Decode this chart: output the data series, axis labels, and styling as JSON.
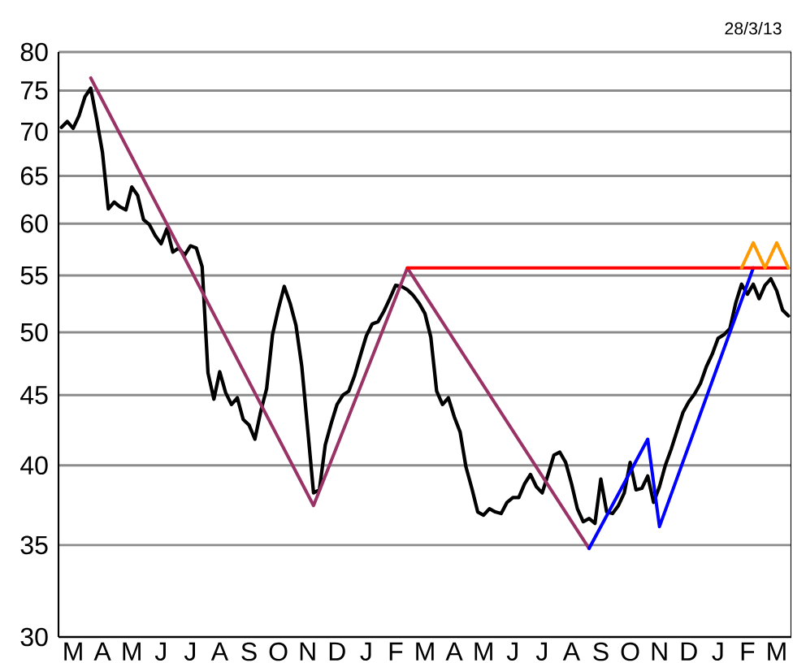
{
  "chart_data": {
    "type": "line",
    "log": "y",
    "grid": "y",
    "annotations": [
      "28/3/13"
    ],
    "ylim": [
      30,
      80
    ],
    "yticks": [
      30,
      35,
      40,
      45,
      50,
      55,
      60,
      65,
      70,
      75,
      80
    ],
    "categories": [
      null,
      null,
      "M",
      null,
      null,
      null,
      null,
      "A",
      null,
      null,
      null,
      null,
      "M",
      null,
      null,
      null,
      null,
      "J",
      null,
      null,
      null,
      null,
      "J",
      null,
      null,
      null,
      null,
      "A",
      null,
      null,
      null,
      null,
      "S",
      null,
      null,
      null,
      null,
      "O",
      null,
      null,
      null,
      null,
      "N",
      null,
      null,
      null,
      null,
      "D",
      null,
      null,
      null,
      null,
      "J",
      null,
      null,
      null,
      null,
      "F",
      null,
      null,
      null,
      null,
      "M",
      null,
      null,
      null,
      null,
      "A",
      null,
      null,
      null,
      null,
      "M",
      null,
      null,
      null,
      null,
      "J",
      null,
      null,
      null,
      null,
      "J",
      null,
      null,
      null,
      null,
      "A",
      null,
      null,
      null,
      null,
      "S",
      null,
      null,
      null,
      null,
      "O",
      null,
      null,
      null,
      null,
      "N",
      null,
      null,
      null,
      null,
      "D",
      null,
      null,
      null,
      null,
      "J",
      null,
      null,
      null,
      null,
      "F",
      null,
      null,
      null,
      null,
      "M",
      null,
      null
    ],
    "series": [
      {
        "color": "#000000",
        "values": [
          70.5,
          71.2,
          70.4,
          71.9,
          74.2,
          75.3,
          71.5,
          67.6,
          61.5,
          62.2,
          61.7,
          61.4,
          63.8,
          62.9,
          60.4,
          59.9,
          58.8,
          58.0,
          59.5,
          57.2,
          57.6,
          56.9,
          57.8,
          57.6,
          55.8,
          46.7,
          44.7,
          46.8,
          45.2,
          44.3,
          44.8,
          43.2,
          42.8,
          41.8,
          43.8,
          45.5,
          49.8,
          52.0,
          54.0,
          52.5,
          50.6,
          47.2,
          42.5,
          38.2,
          38.4,
          41.4,
          42.9,
          44.3,
          45.0,
          45.3,
          46.5,
          48.1,
          49.7,
          50.7,
          50.9,
          51.8,
          52.9,
          54.1,
          54.0,
          53.7,
          53.2,
          52.5,
          51.6,
          49.6,
          45.3,
          44.3,
          44.8,
          43.4,
          42.3,
          39.9,
          38.5,
          37.0,
          36.8,
          37.2,
          37.0,
          36.9,
          37.6,
          37.9,
          37.9,
          38.8,
          39.4,
          38.6,
          38.2,
          39.4,
          40.7,
          40.9,
          40.2,
          38.8,
          37.2,
          36.4,
          36.6,
          36.3,
          39.1,
          37.0,
          36.9,
          37.4,
          38.2,
          40.2,
          38.4,
          38.5,
          39.3,
          37.6,
          38.6,
          40.0,
          41.1,
          42.4,
          43.7,
          44.5,
          45.1,
          45.9,
          47.2,
          48.2,
          49.5,
          49.8,
          50.3,
          52.5,
          54.2,
          53.3,
          54.2,
          52.9,
          54.1,
          54.7,
          53.6,
          51.9,
          51.4
        ]
      },
      {
        "color": "#993366",
        "values": [
          null,
          null,
          null,
          null,
          null,
          76.6,
          null,
          null,
          null,
          null,
          null,
          null,
          null,
          null,
          null,
          null,
          null,
          null,
          null,
          null,
          null,
          null,
          null,
          null,
          null,
          null,
          null,
          null,
          null,
          null,
          null,
          null,
          null,
          null,
          null,
          null,
          null,
          null,
          null,
          null,
          null,
          null,
          null,
          37.4,
          null,
          null,
          null,
          null,
          null,
          null,
          null,
          null,
          null,
          null,
          null,
          null,
          null,
          null,
          null,
          55.7,
          null,
          null,
          null,
          null,
          null,
          null,
          null,
          null,
          null,
          null,
          null,
          null,
          null,
          null,
          null,
          null,
          null,
          null,
          null,
          null,
          null,
          null,
          null,
          null,
          null,
          null,
          null,
          null,
          null,
          null,
          34.8,
          null,
          null,
          null,
          null,
          null,
          null,
          null,
          null,
          null,
          null,
          null,
          null,
          null,
          null,
          null,
          null,
          null,
          null,
          null,
          null,
          null,
          null,
          null,
          null,
          null,
          null,
          null,
          null,
          null,
          null,
          null,
          null,
          null,
          null
        ]
      },
      {
        "color": "#0000ff",
        "values": [
          null,
          null,
          null,
          null,
          null,
          null,
          null,
          null,
          null,
          null,
          null,
          null,
          null,
          null,
          null,
          null,
          null,
          null,
          null,
          null,
          null,
          null,
          null,
          null,
          null,
          null,
          null,
          null,
          null,
          null,
          null,
          null,
          null,
          null,
          null,
          null,
          null,
          null,
          null,
          null,
          null,
          null,
          null,
          null,
          null,
          null,
          null,
          null,
          null,
          null,
          null,
          null,
          null,
          null,
          null,
          null,
          null,
          null,
          null,
          null,
          null,
          null,
          null,
          null,
          null,
          null,
          null,
          null,
          null,
          null,
          null,
          null,
          null,
          null,
          null,
          null,
          null,
          null,
          null,
          null,
          null,
          null,
          null,
          null,
          null,
          null,
          null,
          null,
          null,
          null,
          34.8,
          null,
          null,
          null,
          null,
          null,
          null,
          null,
          null,
          null,
          41.8,
          null,
          36.1,
          null,
          null,
          null,
          null,
          null,
          null,
          null,
          null,
          null,
          null,
          null,
          null,
          null,
          null,
          null,
          55.7,
          null,
          null,
          null,
          null,
          null,
          null
        ]
      },
      {
        "color": "#ff0000",
        "values": [
          null,
          null,
          null,
          null,
          null,
          null,
          null,
          null,
          null,
          null,
          null,
          null,
          null,
          null,
          null,
          null,
          null,
          null,
          null,
          null,
          null,
          null,
          null,
          null,
          null,
          null,
          null,
          null,
          null,
          null,
          null,
          null,
          null,
          null,
          null,
          null,
          null,
          null,
          null,
          null,
          null,
          null,
          null,
          null,
          null,
          null,
          null,
          null,
          null,
          null,
          null,
          null,
          null,
          null,
          null,
          null,
          null,
          null,
          null,
          55.7,
          null,
          null,
          null,
          null,
          null,
          null,
          null,
          null,
          null,
          null,
          null,
          null,
          null,
          null,
          null,
          null,
          null,
          null,
          null,
          null,
          null,
          null,
          null,
          null,
          null,
          null,
          null,
          null,
          null,
          null,
          null,
          null,
          null,
          null,
          null,
          null,
          null,
          null,
          null,
          null,
          null,
          null,
          null,
          null,
          null,
          null,
          null,
          null,
          null,
          null,
          null,
          null,
          null,
          null,
          null,
          null,
          null,
          null,
          null,
          null,
          null,
          null,
          null,
          null,
          55.7
        ]
      },
      {
        "color": "#ff9900",
        "values": [
          null,
          null,
          null,
          null,
          null,
          null,
          null,
          null,
          null,
          null,
          null,
          null,
          null,
          null,
          null,
          null,
          null,
          null,
          null,
          null,
          null,
          null,
          null,
          null,
          null,
          null,
          null,
          null,
          null,
          null,
          null,
          null,
          null,
          null,
          null,
          null,
          null,
          null,
          null,
          null,
          null,
          null,
          null,
          null,
          null,
          null,
          null,
          null,
          null,
          null,
          null,
          null,
          null,
          null,
          null,
          null,
          null,
          null,
          null,
          null,
          null,
          null,
          null,
          null,
          null,
          null,
          null,
          null,
          null,
          null,
          null,
          null,
          null,
          null,
          null,
          null,
          null,
          null,
          null,
          null,
          null,
          null,
          null,
          null,
          null,
          null,
          null,
          null,
          null,
          null,
          null,
          null,
          null,
          null,
          null,
          null,
          null,
          null,
          null,
          null,
          null,
          null,
          null,
          null,
          null,
          null,
          null,
          null,
          null,
          null,
          null,
          null,
          null,
          null,
          null,
          null,
          55.7,
          null,
          58.1,
          null,
          55.7,
          null,
          58.1,
          null,
          55.7
        ]
      }
    ]
  }
}
